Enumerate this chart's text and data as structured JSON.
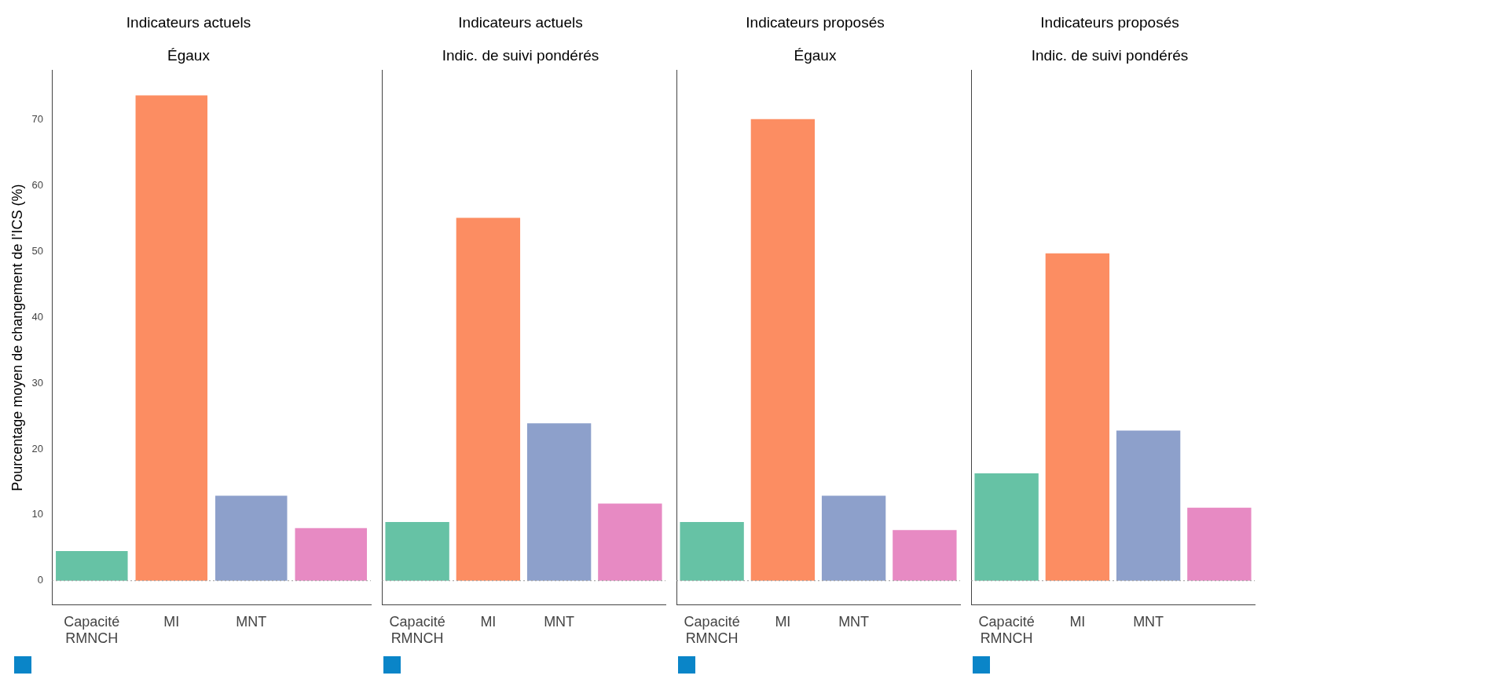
{
  "chart_data": [
    {
      "type": "bar",
      "title": "Indicateurs actuels",
      "subtitle": "Égaux",
      "ylabel": "Pourcentage moyen de changement de l’ICS (%)",
      "categories": [
        "Capacité RMNCH",
        "MI",
        "MNT",
        null
      ],
      "values": [
        4.5,
        73.7,
        12.9,
        8.0
      ],
      "colors": [
        "#66c2a5",
        "#fc8d62",
        "#8da0cb",
        "#e78ac3"
      ],
      "ylim": [
        -3.7,
        77.5
      ],
      "yticks": [
        0,
        10,
        20,
        30,
        40,
        50,
        60,
        70
      ],
      "grid": false,
      "ref_lines": [
        {
          "axis": "y",
          "value": 0,
          "line_style": "dotted",
          "color": "#999999"
        }
      ]
    },
    {
      "type": "bar",
      "title": "Indicateurs actuels",
      "subtitle": "Indic. de suivi pondérés",
      "categories": [
        "Capacité RMNCH",
        "MI",
        "MNT",
        null
      ],
      "values": [
        8.9,
        55.1,
        23.9,
        11.7
      ],
      "colors": [
        "#66c2a5",
        "#fc8d62",
        "#8da0cb",
        "#e78ac3"
      ],
      "ylim": [
        -3.7,
        77.5
      ],
      "yticks": [
        0,
        10,
        20,
        30,
        40,
        50,
        60,
        70
      ],
      "tick_labels": "x",
      "grid": false,
      "ref_lines": [
        {
          "axis": "y",
          "value": 0,
          "line_style": "dotted",
          "color": "#999999"
        }
      ]
    },
    {
      "type": "bar",
      "title": "Indicateurs proposés",
      "subtitle": "Égaux",
      "categories": [
        "Capacité RMNCH",
        "MI",
        "MNT",
        null
      ],
      "values": [
        8.9,
        70.1,
        12.9,
        7.7
      ],
      "colors": [
        "#66c2a5",
        "#fc8d62",
        "#8da0cb",
        "#e78ac3"
      ],
      "ylim": [
        -3.7,
        77.5
      ],
      "yticks": [
        0,
        10,
        20,
        30,
        40,
        50,
        60,
        70
      ],
      "tick_labels": "x",
      "grid": false,
      "ref_lines": [
        {
          "axis": "y",
          "value": 0,
          "line_style": "dotted",
          "color": "#999999"
        }
      ]
    },
    {
      "type": "bar",
      "title": "Indicateurs proposés",
      "subtitle": "Indic. de suivi pondérés",
      "categories": [
        "Capacité RMNCH",
        "MI",
        "MNT",
        null
      ],
      "values": [
        16.3,
        49.7,
        22.8,
        11.1
      ],
      "colors": [
        "#66c2a5",
        "#fc8d62",
        "#8da0cb",
        "#e78ac3"
      ],
      "ylim": [
        -3.7,
        77.5
      ],
      "yticks": [
        0,
        10,
        20,
        30,
        40,
        50,
        60,
        70
      ],
      "tick_labels": "x",
      "grid": false,
      "ref_lines": [
        {
          "axis": "y",
          "value": 0,
          "line_style": "dotted",
          "color": "#999999"
        }
      ]
    }
  ]
}
